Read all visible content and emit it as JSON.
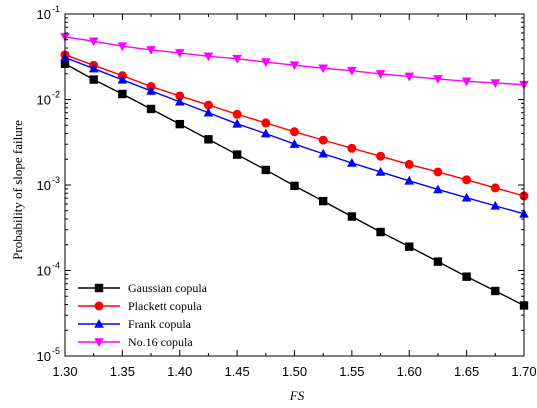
{
  "chart_data": {
    "type": "line",
    "title": "",
    "xlabel": "FS",
    "ylabel": "Probability of slope failure",
    "x_scale": "linear",
    "y_scale": "log",
    "xlim": [
      1.3,
      1.7
    ],
    "ylim": [
      1e-05,
      0.1
    ],
    "x_tick_labels": [
      "1.30",
      "1.35",
      "1.40",
      "1.45",
      "1.50",
      "1.55",
      "1.60",
      "1.65",
      "1.70"
    ],
    "y_tick_labels": [
      {
        "base": "10",
        "exp": "-5"
      },
      {
        "base": "10",
        "exp": "-4"
      },
      {
        "base": "10",
        "exp": "-3"
      },
      {
        "base": "10",
        "exp": "-2"
      },
      {
        "base": "10",
        "exp": "-1"
      }
    ],
    "grid": false,
    "legend_position": "bottom-left",
    "x": [
      1.3,
      1.325,
      1.35,
      1.375,
      1.4,
      1.425,
      1.45,
      1.475,
      1.5,
      1.525,
      1.55,
      1.575,
      1.6,
      1.625,
      1.65,
      1.675,
      1.7
    ],
    "series": [
      {
        "name": "Gaussian copula",
        "color": "#000000",
        "marker": "square",
        "values": [
          0.0262,
          0.0171,
          0.0116,
          0.00775,
          0.00515,
          0.00342,
          0.00227,
          0.0015,
          0.000977,
          0.000648,
          0.000428,
          0.000282,
          0.00019,
          0.000127,
          8.47e-05,
          5.76e-05,
          3.9e-05
        ]
      },
      {
        "name": "Plackett copula",
        "color": "#ff0000",
        "marker": "circle",
        "values": [
          0.0333,
          0.0251,
          0.019,
          0.0142,
          0.011,
          0.0086,
          0.00672,
          0.00532,
          0.00419,
          0.00335,
          0.00269,
          0.00217,
          0.00174,
          0.00142,
          0.00115,
          0.000925,
          0.000745
        ]
      },
      {
        "name": "Frank copula",
        "color": "#0000ff",
        "marker": "triangle-up",
        "values": [
          0.031,
          0.023,
          0.017,
          0.0126,
          0.00942,
          0.007,
          0.0052,
          0.00399,
          0.00301,
          0.00232,
          0.00181,
          0.00142,
          0.00112,
          0.000887,
          0.00071,
          0.00057,
          0.00046
        ]
      },
      {
        "name": "No.16 copula",
        "color": "#ff00ff",
        "marker": "triangle-down",
        "values": [
          0.054,
          0.048,
          0.042,
          0.038,
          0.035,
          0.032,
          0.03,
          0.0274,
          0.0252,
          0.0232,
          0.0217,
          0.0199,
          0.0186,
          0.0174,
          0.0163,
          0.0156,
          0.0149
        ]
      }
    ]
  }
}
